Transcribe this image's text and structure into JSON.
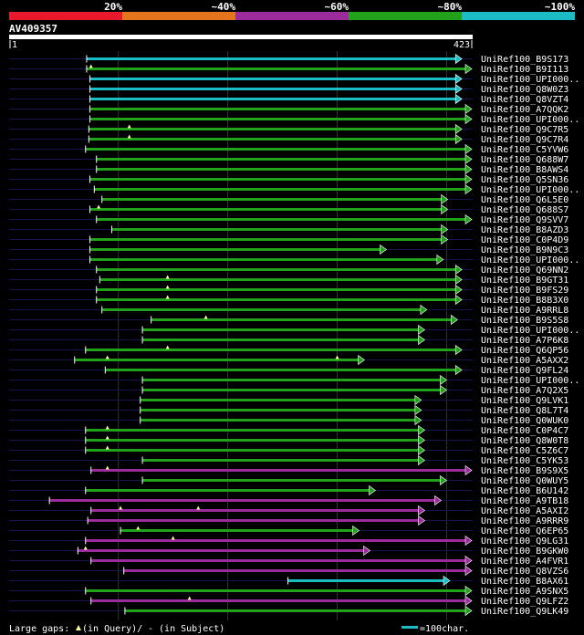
{
  "chart_data": {
    "type": "alignment-overview",
    "query_id": "AV409357",
    "query_length": 423,
    "query_start_label": "1",
    "query_end_label": "423",
    "identity_scale": [
      {
        "label": "20%",
        "color": "#e8192c"
      },
      {
        "label": "~40%",
        "color": "#e5751c"
      },
      {
        "label": "~60%",
        "color": "#9c2b9b"
      },
      {
        "label": "~80%",
        "color": "#22a11a"
      },
      {
        "label": "~100%",
        "color": "#1cbcc4"
      }
    ],
    "legend": {
      "gaps_text": "Large gaps: ",
      "query_gap_text": "(in Query)/",
      "subject_gap_text": "- (in Subject)",
      "scale_bar_text": "=100char."
    },
    "hits": [
      {
        "id": "UniRef100_B9S173",
        "start": 71,
        "end": 414,
        "color": "#1cbcc4",
        "arrow": "left",
        "gaps": []
      },
      {
        "id": "UniRef100_B9I113",
        "start": 71,
        "end": 423,
        "color": "#22a11a",
        "arrow": "right",
        "gaps": [
          75
        ]
      },
      {
        "id": "UniRef100_UPI000..",
        "start": 74,
        "end": 414,
        "color": "#1cbcc4",
        "arrow": "left",
        "gaps": []
      },
      {
        "id": "UniRef100_Q8W0Z3",
        "start": 74,
        "end": 414,
        "color": "#1cbcc4",
        "arrow": "left",
        "gaps": []
      },
      {
        "id": "UniRef100_Q8VZT4",
        "start": 74,
        "end": 414,
        "color": "#1cbcc4",
        "arrow": "left",
        "gaps": []
      },
      {
        "id": "UniRef100_A7QQK2",
        "start": 74,
        "end": 423,
        "color": "#22a11a",
        "arrow": "right",
        "gaps": []
      },
      {
        "id": "UniRef100_UPI000..",
        "start": 74,
        "end": 423,
        "color": "#22a11a",
        "arrow": "right",
        "gaps": []
      },
      {
        "id": "UniRef100_Q9C7R5",
        "start": 73,
        "end": 414,
        "color": "#22a11a",
        "arrow": "right",
        "gaps": [
          110
        ]
      },
      {
        "id": "UniRef100_Q9C7R4",
        "start": 73,
        "end": 414,
        "color": "#22a11a",
        "arrow": "right",
        "gaps": [
          110
        ]
      },
      {
        "id": "UniRef100_C5YVW6",
        "start": 70,
        "end": 423,
        "color": "#22a11a",
        "arrow": "right",
        "gaps": []
      },
      {
        "id": "UniRef100_Q688W7",
        "start": 80,
        "end": 423,
        "color": "#22a11a",
        "arrow": "right",
        "gaps": []
      },
      {
        "id": "UniRef100_B8AWS4",
        "start": 80,
        "end": 423,
        "color": "#22a11a",
        "arrow": "right",
        "gaps": []
      },
      {
        "id": "UniRef100_Q5SN36",
        "start": 74,
        "end": 423,
        "color": "#22a11a",
        "arrow": "right",
        "gaps": []
      },
      {
        "id": "UniRef100_UPI000..",
        "start": 78,
        "end": 423,
        "color": "#22a11a",
        "arrow": "right",
        "gaps": []
      },
      {
        "id": "UniRef100_Q6L5E0",
        "start": 85,
        "end": 401,
        "color": "#22a11a",
        "arrow": "right",
        "gaps": []
      },
      {
        "id": "UniRef100_Q688S7",
        "start": 74,
        "end": 401,
        "color": "#22a11a",
        "arrow": "right",
        "gaps": [
          82
        ]
      },
      {
        "id": "UniRef100_Q9SVV7",
        "start": 80,
        "end": 423,
        "color": "#22a11a",
        "arrow": "right",
        "gaps": []
      },
      {
        "id": "UniRef100_B8AZD3",
        "start": 94,
        "end": 401,
        "color": "#22a11a",
        "arrow": "right",
        "gaps": []
      },
      {
        "id": "UniRef100_C0P4D9",
        "start": 74,
        "end": 401,
        "color": "#22a11a",
        "arrow": "right",
        "gaps": []
      },
      {
        "id": "UniRef100_B9N9C3",
        "start": 74,
        "end": 345,
        "color": "#22a11a",
        "arrow": "right",
        "gaps": []
      },
      {
        "id": "UniRef100_UPI000..",
        "start": 74,
        "end": 397,
        "color": "#22a11a",
        "arrow": "right",
        "gaps": []
      },
      {
        "id": "UniRef100_Q69NN2",
        "start": 80,
        "end": 414,
        "color": "#22a11a",
        "arrow": "right",
        "gaps": []
      },
      {
        "id": "UniRef100_B9GT31",
        "start": 83,
        "end": 414,
        "color": "#22a11a",
        "arrow": "right",
        "gaps": [
          145
        ]
      },
      {
        "id": "UniRef100_B9FS29",
        "start": 80,
        "end": 414,
        "color": "#22a11a",
        "arrow": "right",
        "gaps": [
          145
        ]
      },
      {
        "id": "UniRef100_B8B3X0",
        "start": 80,
        "end": 414,
        "color": "#22a11a",
        "arrow": "right",
        "gaps": [
          145
        ]
      },
      {
        "id": "UniRef100_A9RRL8",
        "start": 85,
        "end": 382,
        "color": "#22a11a",
        "arrow": "right",
        "gaps": []
      },
      {
        "id": "UniRef100_B9S5S8",
        "start": 130,
        "end": 410,
        "color": "#22a11a",
        "arrow": "right",
        "gaps": [
          180
        ]
      },
      {
        "id": "UniRef100_UPI000..",
        "start": 122,
        "end": 380,
        "color": "#22a11a",
        "arrow": "right",
        "gaps": []
      },
      {
        "id": "UniRef100_A7P6K8",
        "start": 122,
        "end": 380,
        "color": "#22a11a",
        "arrow": "right",
        "gaps": []
      },
      {
        "id": "UniRef100_Q6QP56",
        "start": 70,
        "end": 414,
        "color": "#22a11a",
        "arrow": "right",
        "gaps": [
          145
        ]
      },
      {
        "id": "UniRef100_A5AXX2",
        "start": 60,
        "end": 325,
        "color": "#22a11a",
        "arrow": "right",
        "gaps": [
          90,
          300
        ]
      },
      {
        "id": "UniRef100_Q9FL24",
        "start": 88,
        "end": 414,
        "color": "#22a11a",
        "arrow": "right",
        "gaps": []
      },
      {
        "id": "UniRef100_UPI000..",
        "start": 122,
        "end": 400,
        "color": "#22a11a",
        "arrow": "right",
        "gaps": []
      },
      {
        "id": "UniRef100_A7Q2X5",
        "start": 122,
        "end": 400,
        "color": "#22a11a",
        "arrow": "right",
        "gaps": []
      },
      {
        "id": "UniRef100_Q9LVK1",
        "start": 120,
        "end": 377,
        "color": "#22a11a",
        "arrow": "right",
        "gaps": []
      },
      {
        "id": "UniRef100_Q8L7T4",
        "start": 120,
        "end": 377,
        "color": "#22a11a",
        "arrow": "right",
        "gaps": []
      },
      {
        "id": "UniRef100_Q0WUK0",
        "start": 120,
        "end": 377,
        "color": "#22a11a",
        "arrow": "right",
        "gaps": []
      },
      {
        "id": "UniRef100_C0P4C7",
        "start": 70,
        "end": 380,
        "color": "#22a11a",
        "arrow": "right",
        "gaps": [
          90
        ]
      },
      {
        "id": "UniRef100_Q8W0T8",
        "start": 70,
        "end": 380,
        "color": "#22a11a",
        "arrow": "right",
        "gaps": [
          90
        ]
      },
      {
        "id": "UniRef100_C5Z6C7",
        "start": 70,
        "end": 380,
        "color": "#22a11a",
        "arrow": "right",
        "gaps": [
          90
        ]
      },
      {
        "id": "UniRef100_C5YK53",
        "start": 122,
        "end": 380,
        "color": "#22a11a",
        "arrow": "right",
        "gaps": []
      },
      {
        "id": "UniRef100_B9S9X5",
        "start": 75,
        "end": 423,
        "color": "#9c2b9b",
        "arrow": "right",
        "gaps": [
          90
        ]
      },
      {
        "id": "UniRef100_Q0WUY5",
        "start": 122,
        "end": 400,
        "color": "#22a11a",
        "arrow": "right",
        "gaps": []
      },
      {
        "id": "UniRef100_B6U142",
        "start": 70,
        "end": 335,
        "color": "#22a11a",
        "arrow": "right",
        "gaps": []
      },
      {
        "id": "UniRef100_A9TB18",
        "start": 37,
        "end": 395,
        "color": "#9c2b9b",
        "arrow": "right",
        "gaps": []
      },
      {
        "id": "UniRef100_A5AXI2",
        "start": 75,
        "end": 380,
        "color": "#9c2b9b",
        "arrow": "right",
        "gaps": [
          102,
          173
        ]
      },
      {
        "id": "UniRef100_A9RRR9",
        "start": 72,
        "end": 380,
        "color": "#9c2b9b",
        "arrow": "right",
        "gaps": []
      },
      {
        "id": "UniRef100_Q6EP65",
        "start": 102,
        "end": 320,
        "color": "#22a11a",
        "arrow": "right",
        "gaps": [
          118
        ]
      },
      {
        "id": "UniRef100_Q9LG31",
        "start": 70,
        "end": 423,
        "color": "#9c2b9b",
        "arrow": "right",
        "gaps": [
          150
        ]
      },
      {
        "id": "UniRef100_B9GKW0",
        "start": 63,
        "end": 330,
        "color": "#9c2b9b",
        "arrow": "right",
        "gaps": [
          70
        ]
      },
      {
        "id": "UniRef100_A4FVR1",
        "start": 75,
        "end": 423,
        "color": "#9c2b9b",
        "arrow": "right",
        "gaps": []
      },
      {
        "id": "UniRef100_Q8VZS6",
        "start": 105,
        "end": 423,
        "color": "#9c2b9b",
        "arrow": "right",
        "gaps": []
      },
      {
        "id": "UniRef100_B8AX61",
        "start": 255,
        "end": 403,
        "color": "#1cbcc4",
        "arrow": "left",
        "gaps": []
      },
      {
        "id": "UniRef100_A9SNX5",
        "start": 70,
        "end": 423,
        "color": "#22a11a",
        "arrow": "right",
        "gaps": []
      },
      {
        "id": "UniRef100_Q9LFZ2",
        "start": 75,
        "end": 423,
        "color": "#9c2b9b",
        "arrow": "right",
        "gaps": [
          165
        ]
      },
      {
        "id": "UniRef100_Q9LK49",
        "start": 106,
        "end": 423,
        "color": "#22a11a",
        "arrow": "right",
        "gaps": []
      }
    ]
  }
}
